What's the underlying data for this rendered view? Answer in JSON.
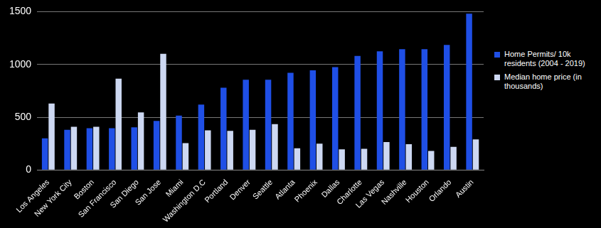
{
  "chart_data": {
    "type": "bar",
    "categories": [
      "Los Angeles",
      "New York City",
      "Boston",
      "San Francisco",
      "San Diego",
      "San Jose",
      "Miami",
      "Washington D.C",
      "Portland",
      "Denver",
      "Seattle",
      "Atlanta",
      "Phoenix",
      "Dallas",
      "Charlotte",
      "Las Vegas",
      "Nashville",
      "Houston",
      "Orlando",
      "Austin"
    ],
    "series": [
      {
        "name": "Home Permits/ 10k residents (2004 - 2019)",
        "color": "#1f4fe6",
        "values": [
          300,
          380,
          395,
          395,
          405,
          465,
          515,
          620,
          780,
          855,
          855,
          920,
          945,
          975,
          1080,
          1125,
          1145,
          1145,
          1185,
          1480
        ]
      },
      {
        "name": "Median home price (in thousands)",
        "color": "#cdd8f2",
        "values": [
          630,
          410,
          410,
          865,
          545,
          1100,
          255,
          375,
          370,
          380,
          435,
          205,
          250,
          195,
          200,
          265,
          245,
          180,
          220,
          290
        ]
      }
    ],
    "ylim": [
      0,
      1500
    ],
    "yticks": [
      0,
      500,
      1000,
      1500
    ],
    "grid": true,
    "legend": "right"
  }
}
